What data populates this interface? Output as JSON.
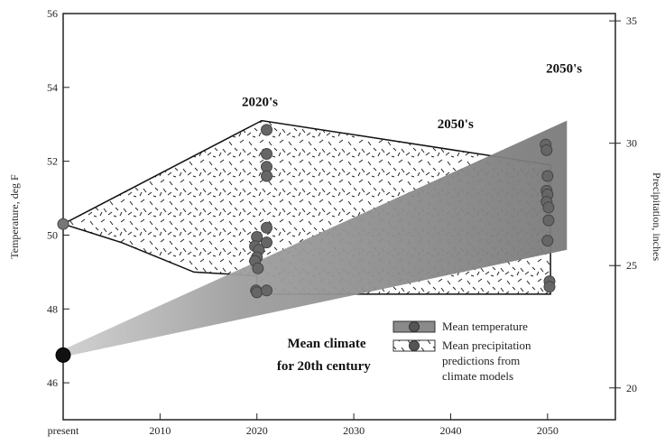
{
  "chart_data": {
    "type": "area",
    "xlabel": "",
    "ylabel_left": "Temperature, deg F",
    "ylabel_right": "Precipitation, inches",
    "x_ticks": [
      {
        "value": 2000,
        "label": "present"
      },
      {
        "value": 2010,
        "label": "2010"
      },
      {
        "value": 2020,
        "label": "2020"
      },
      {
        "value": 2030,
        "label": "2030"
      },
      {
        "value": 2040,
        "label": "2040"
      },
      {
        "value": 2050,
        "label": "2050"
      }
    ],
    "xlim": [
      2000,
      2057
    ],
    "ylim_left": [
      45,
      56
    ],
    "yticks_left": [
      46,
      48,
      50,
      52,
      54,
      56
    ],
    "ylim_right": [
      18.7,
      35.3
    ],
    "yticks_right": [
      20,
      25,
      30,
      35
    ],
    "temperature_band": {
      "name": "Mean temperature",
      "x": [
        2000,
        2052
      ],
      "upper": [
        46.9,
        53.1
      ],
      "lower": [
        46.7,
        49.6
      ]
    },
    "precipitation_region": {
      "name": "Mean precipitation predictions from climate models",
      "outline": [
        {
          "x": 2000,
          "y": 50.3
        },
        {
          "x": 2020.5,
          "y": 53.1
        },
        {
          "x": 2050.3,
          "y": 51.9
        },
        {
          "x": 2050.3,
          "y": 48.4
        },
        {
          "x": 2020,
          "y": 48.4
        },
        {
          "x": 2020,
          "y": 48.9
        },
        {
          "x": 2013.5,
          "y": 49.0
        },
        {
          "x": 2006,
          "y": 49.8
        }
      ]
    },
    "model_points": [
      {
        "x": 2020.0,
        "y": 49.95
      },
      {
        "x": 2019.8,
        "y": 49.7
      },
      {
        "x": 2020.2,
        "y": 49.6
      },
      {
        "x": 2020.0,
        "y": 49.4
      },
      {
        "x": 2019.8,
        "y": 49.3
      },
      {
        "x": 2020.1,
        "y": 49.1
      },
      {
        "x": 2019.9,
        "y": 48.5
      },
      {
        "x": 2020.0,
        "y": 48.45
      },
      {
        "x": 2021.0,
        "y": 50.2
      },
      {
        "x": 2021.0,
        "y": 49.8
      },
      {
        "x": 2021.0,
        "y": 48.5
      },
      {
        "x": 2021.0,
        "y": 52.85
      },
      {
        "x": 2021.0,
        "y": 52.2
      },
      {
        "x": 2021.0,
        "y": 51.85
      },
      {
        "x": 2021.0,
        "y": 51.6
      },
      {
        "x": 2049.8,
        "y": 52.45
      },
      {
        "x": 2049.9,
        "y": 52.3
      },
      {
        "x": 2050.0,
        "y": 51.6
      },
      {
        "x": 2049.9,
        "y": 51.2
      },
      {
        "x": 2050.0,
        "y": 51.1
      },
      {
        "x": 2049.9,
        "y": 50.9
      },
      {
        "x": 2050.1,
        "y": 50.75
      },
      {
        "x": 2050.1,
        "y": 50.4
      },
      {
        "x": 2050.0,
        "y": 49.85
      },
      {
        "x": 2050.2,
        "y": 48.75
      },
      {
        "x": 2050.2,
        "y": 48.6
      }
    ],
    "present_point": {
      "x": 2000,
      "y": 50.3
    },
    "present_mean_point": {
      "x": 2000,
      "y": 46.75
    },
    "annotations": [
      {
        "text": "2020's",
        "x": 2020.3,
        "y": 53.5
      },
      {
        "text": "2050's",
        "x": 2040.5,
        "y": 52.9
      },
      {
        "text": "2050's",
        "x": 2051.7,
        "y": 54.4
      },
      {
        "text": "Mean climate",
        "x": 2027.2,
        "y": 46.95
      },
      {
        "text": "for 20th century",
        "x": 2026.9,
        "y": 46.35
      }
    ],
    "legend": {
      "position": "bottom-right",
      "entries": [
        {
          "kind": "temperature",
          "label_lines": [
            "Mean temperature"
          ]
        },
        {
          "kind": "precipitation",
          "label_lines": [
            "Mean precipitation",
            "predictions from",
            "climate models"
          ]
        }
      ]
    },
    "grid": false
  }
}
